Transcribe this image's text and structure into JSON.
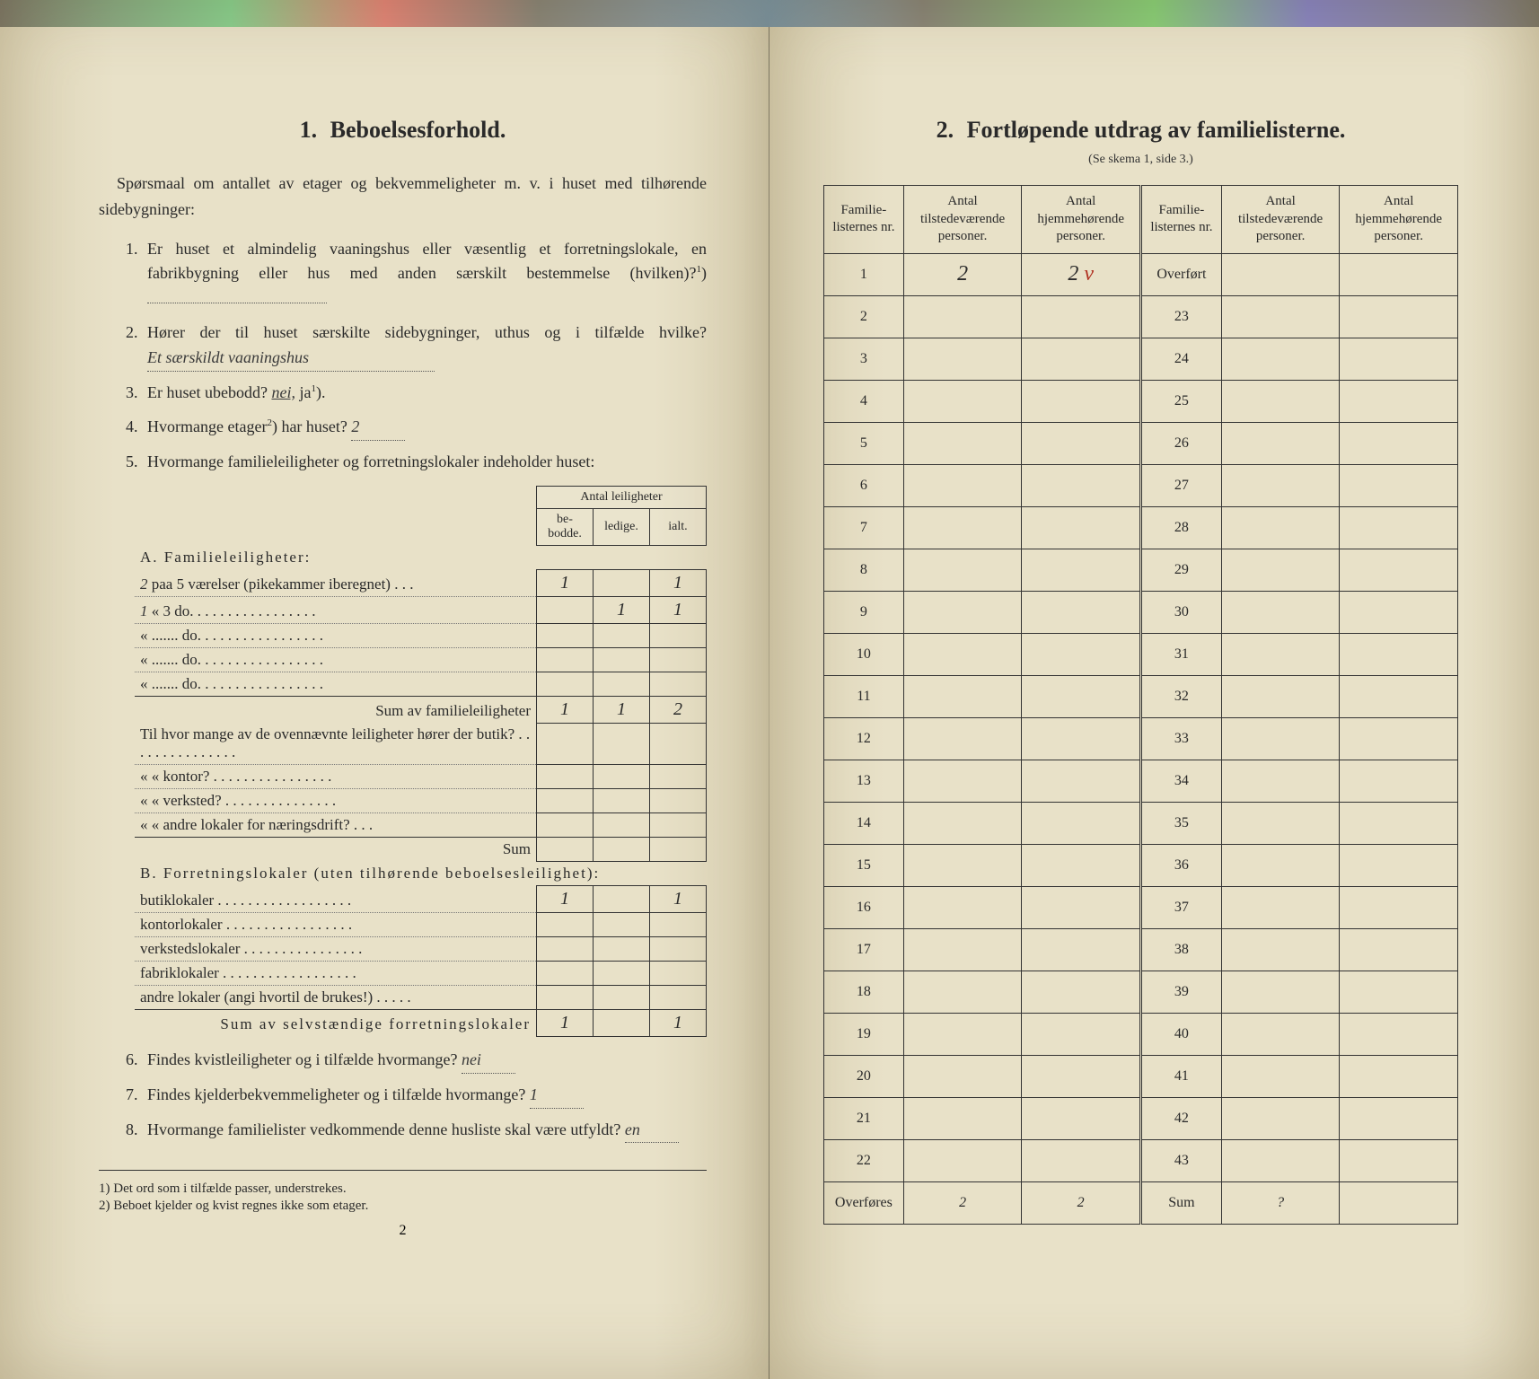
{
  "left": {
    "title_num": "1.",
    "title": "Beboelsesforhold.",
    "intro": "Spørsmaal om antallet av etager og bekvemmeligheter m. v. i huset med tilhørende sidebygninger:",
    "q1": "Er huset et almindelig vaaningshus eller væsentlig et forretningslokale, en fabrikbygning eller hus med anden særskilt bestemmelse (hvilken)?",
    "q1_sup": "1",
    "q1_ans": "",
    "q2": "Hører der til huset særskilte sidebygninger, uthus og i tilfælde hvilke?",
    "q2_ans": "Et særskildt vaaningshus",
    "q3": "Er huset ubebodd?",
    "q3_nei": "nei,",
    "q3_ja": "ja",
    "q3_sup": "1",
    "q4": "Hvormange etager",
    "q4_sup": "2",
    "q4_rest": " har huset?",
    "q4_ans": "2",
    "q5": "Hvormange familieleiligheter og forretningslokaler indeholder huset:",
    "tab_header_top": "Antal leiligheter",
    "tab_h1": "be-bodde.",
    "tab_h2": "ledige.",
    "tab_h3": "ialt.",
    "secA": "A. Familieleiligheter:",
    "a1_pre": "2",
    "a1_label": "paa 5 værelser (pikekammer iberegnet) . . .",
    "a1_v1": "1",
    "a1_v2": "",
    "a1_v3": "1",
    "a2_pre": "1",
    "a2_label": "« 3 do. . . . . . . . . . . . . . . . .",
    "a2_v1": "",
    "a2_v2": "1",
    "a2_v3": "1",
    "a3_label": "« ....... do. . . . . . . . . . . . . . . . .",
    "a4_label": "« ....... do. . . . . . . . . . . . . . . . .",
    "a5_label": "« ....... do. . . . . . . . . . . . . . . . .",
    "sumA_label": "Sum av familieleiligheter",
    "sumA_v1": "1",
    "sumA_v2": "1",
    "sumA_v3": "2",
    "mid_q1": "Til hvor mange av de ovennævnte leiligheter hører der butik? . . . . . . . . . . . . . . .",
    "mid_q2": "« « kontor? . . . . . . . . . . . . . . . .",
    "mid_q3": "« « verksted? . . . . . . . . . . . . . . .",
    "mid_q4": "« « andre lokaler for næringsdrift? . . .",
    "mid_sum": "Sum",
    "secB": "B. Forretningslokaler (uten tilhørende beboelsesleilighet):",
    "b1": "butiklokaler . . . . . . . . . . . . . . . . . .",
    "b1_v1": "1",
    "b1_v3": "1",
    "b2": "kontorlokaler . . . . . . . . . . . . . . . . .",
    "b3": "verkstedslokaler . . . . . . . . . . . . . . . .",
    "b4": "fabriklokaler . . . . . . . . . . . . . . . . . .",
    "b5": "andre lokaler (angi hvortil de brukes!) . . . . .",
    "sumB_label": "Sum av selvstændige forretningslokaler",
    "sumB_v1": "1",
    "sumB_v3": "1",
    "q6": "Findes kvistleiligheter og i tilfælde hvormange?",
    "q6_ans": "nei",
    "q7": "Findes kjelderbekvemmeligheter og i tilfælde hvormange?",
    "q7_ans": "1",
    "q8": "Hvormange familielister vedkommende denne husliste skal være utfyldt?",
    "q8_ans": "en",
    "fn1_num": "1)",
    "fn1": "Det ord som i tilfælde passer, understrekes.",
    "fn2_num": "2)",
    "fn2": "Beboet kjelder og kvist regnes ikke som etager.",
    "page_number": "2"
  },
  "right": {
    "title_num": "2.",
    "title": "Fortløpende utdrag av familielisterne.",
    "subtitle": "(Se skema 1, side 3.)",
    "h1": "Familie-listernes nr.",
    "h2": "Antal tilstedeværende personer.",
    "h3": "Antal hjemmehørende personer.",
    "h4": "Familie-listernes nr.",
    "h5": "Antal tilstedeværende personer.",
    "h6": "Antal hjemmehørende personer.",
    "row1_v2": "2",
    "row1_v3": "2",
    "row1_mark": "v",
    "overfort": "Overført",
    "rows_left": [
      "1",
      "2",
      "3",
      "4",
      "5",
      "6",
      "7",
      "8",
      "9",
      "10",
      "11",
      "12",
      "13",
      "14",
      "15",
      "16",
      "17",
      "18",
      "19",
      "20",
      "21",
      "22"
    ],
    "rows_right": [
      "23",
      "24",
      "25",
      "26",
      "27",
      "28",
      "29",
      "30",
      "31",
      "32",
      "33",
      "34",
      "35",
      "36",
      "37",
      "38",
      "39",
      "40",
      "41",
      "42",
      "43"
    ],
    "overfores": "Overføres",
    "foot_v2": "2",
    "foot_v3": "2",
    "sum_label": "Sum",
    "foot_v5": "?",
    "colors": {
      "paper": "#e8e1c8",
      "ink": "#2a2a2a",
      "red": "#b03020"
    }
  }
}
